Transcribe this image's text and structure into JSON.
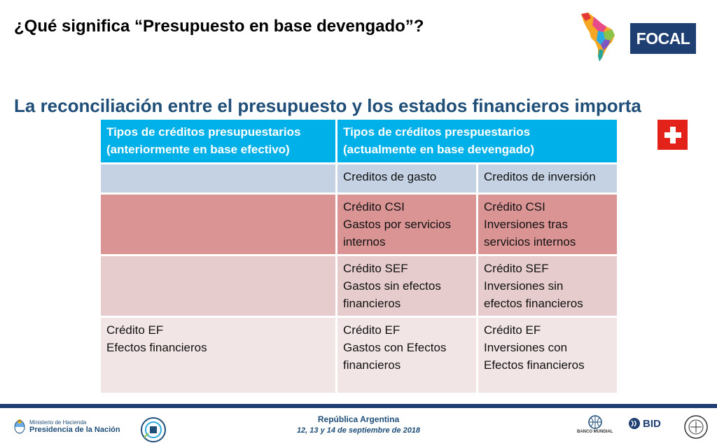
{
  "slide": {
    "title": "¿Qué significa “Presupuesto en base devengado”?",
    "subtitle": "La reconciliación entre el presupuesto y los estados financieros importa"
  },
  "logos": {
    "focal": "FOCAL",
    "bid": "BID",
    "world_bank": "BANCO MUNDIAL",
    "ministry_line1": "Ministerio de Hacienda",
    "ministry_line2": "Presidencia de la Nación"
  },
  "table": {
    "headers": [
      [
        "Tipos de créditos presupuestarios",
        "(anteriormente en base efectivo)"
      ],
      [
        "Tipos de créditos prespuestarios",
        "(actualmente en base devengado)"
      ]
    ],
    "subheaders": [
      "Creditos de gasto",
      "Creditos de inversión"
    ],
    "rows": [
      {
        "left": [],
        "gasto": [
          "Crédito CSI",
          "Gastos por servicios",
          "internos"
        ],
        "inversion": [
          "Crédito CSI",
          "Inversiones tras",
          "servicios internos"
        ]
      },
      {
        "left": [],
        "gasto": [
          "Crédito SEF",
          "Gastos sin efectos",
          "financieros"
        ],
        "inversion": [
          "Crédito SEF",
          "Inversiones sin",
          "efectos financieros"
        ]
      },
      {
        "left": [
          "Crédito EF",
          "Efectos financieros"
        ],
        "gasto": [
          "Crédito EF",
          "Gastos con Efectos",
          "financieros"
        ],
        "inversion": [
          "Crédito EF",
          "Inversiones con",
          "Efectos financieros"
        ]
      }
    ]
  },
  "footer": {
    "country": "República Argentina",
    "dates": "12, 13 y 14 de septiembre de 2018"
  },
  "colors": {
    "header_blue": "#00B0E8",
    "row_gray": "#C4D2E4",
    "row_red": "#DB9494",
    "row_pink": "#E6CCCC",
    "row_light": "#F2E5E5",
    "subtitle_blue": "#1F4E79",
    "swiss_red": "#E32219"
  }
}
